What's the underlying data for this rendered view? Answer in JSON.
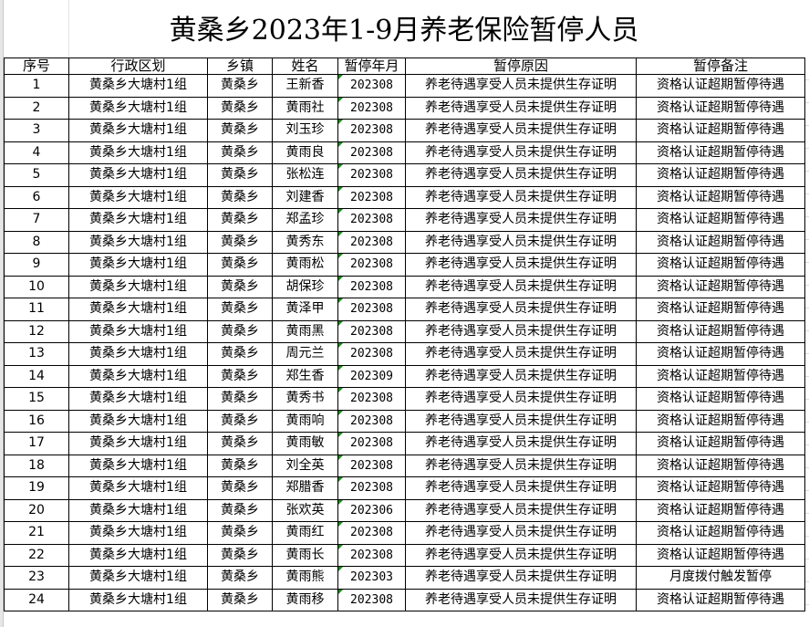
{
  "title": "黄桑乡2023年1-9月养老保险暂停人员",
  "headers": [
    "序号",
    "行政区划",
    "乡镇",
    "姓名",
    "暂停年月",
    "暂停原因",
    "暂停备注"
  ],
  "rows": [
    [
      "1",
      "黄桑乡大塘村1组",
      "黄桑乡",
      "王新香",
      "202308",
      "养老待遇享受人员未提供生存证明",
      "资格认证超期暂停待遇"
    ],
    [
      "2",
      "黄桑乡大塘村1组",
      "黄桑乡",
      "黄雨社",
      "202308",
      "养老待遇享受人员未提供生存证明",
      "资格认证超期暂停待遇"
    ],
    [
      "3",
      "黄桑乡大塘村1组",
      "黄桑乡",
      "刘玉珍",
      "202308",
      "养老待遇享受人员未提供生存证明",
      "资格认证超期暂停待遇"
    ],
    [
      "4",
      "黄桑乡大塘村1组",
      "黄桑乡",
      "黄雨良",
      "202308",
      "养老待遇享受人员未提供生存证明",
      "资格认证超期暂停待遇"
    ],
    [
      "5",
      "黄桑乡大塘村1组",
      "黄桑乡",
      "张松连",
      "202308",
      "养老待遇享受人员未提供生存证明",
      "资格认证超期暂停待遇"
    ],
    [
      "6",
      "黄桑乡大塘村1组",
      "黄桑乡",
      "刘建香",
      "202308",
      "养老待遇享受人员未提供生存证明",
      "资格认证超期暂停待遇"
    ],
    [
      "7",
      "黄桑乡大塘村1组",
      "黄桑乡",
      "郑孟珍",
      "202308",
      "养老待遇享受人员未提供生存证明",
      "资格认证超期暂停待遇"
    ],
    [
      "8",
      "黄桑乡大塘村1组",
      "黄桑乡",
      "黄秀东",
      "202308",
      "养老待遇享受人员未提供生存证明",
      "资格认证超期暂停待遇"
    ],
    [
      "9",
      "黄桑乡大塘村1组",
      "黄桑乡",
      "黄雨松",
      "202308",
      "养老待遇享受人员未提供生存证明",
      "资格认证超期暂停待遇"
    ],
    [
      "10",
      "黄桑乡大塘村1组",
      "黄桑乡",
      "胡保珍",
      "202308",
      "养老待遇享受人员未提供生存证明",
      "资格认证超期暂停待遇"
    ],
    [
      "11",
      "黄桑乡大塘村1组",
      "黄桑乡",
      "黄泽甲",
      "202308",
      "养老待遇享受人员未提供生存证明",
      "资格认证超期暂停待遇"
    ],
    [
      "12",
      "黄桑乡大塘村1组",
      "黄桑乡",
      "黄雨黑",
      "202308",
      "养老待遇享受人员未提供生存证明",
      "资格认证超期暂停待遇"
    ],
    [
      "13",
      "黄桑乡大塘村1组",
      "黄桑乡",
      "周元兰",
      "202308",
      "养老待遇享受人员未提供生存证明",
      "资格认证超期暂停待遇"
    ],
    [
      "14",
      "黄桑乡大塘村1组",
      "黄桑乡",
      "郑生香",
      "202309",
      "养老待遇享受人员未提供生存证明",
      "资格认证超期暂停待遇"
    ],
    [
      "15",
      "黄桑乡大塘村1组",
      "黄桑乡",
      "黄秀书",
      "202308",
      "养老待遇享受人员未提供生存证明",
      "资格认证超期暂停待遇"
    ],
    [
      "16",
      "黄桑乡大塘村1组",
      "黄桑乡",
      "黄雨响",
      "202308",
      "养老待遇享受人员未提供生存证明",
      "资格认证超期暂停待遇"
    ],
    [
      "17",
      "黄桑乡大塘村1组",
      "黄桑乡",
      "黄雨敏",
      "202308",
      "养老待遇享受人员未提供生存证明",
      "资格认证超期暂停待遇"
    ],
    [
      "18",
      "黄桑乡大塘村1组",
      "黄桑乡",
      "刘全英",
      "202308",
      "养老待遇享受人员未提供生存证明",
      "资格认证超期暂停待遇"
    ],
    [
      "19",
      "黄桑乡大塘村1组",
      "黄桑乡",
      "郑腊香",
      "202308",
      "养老待遇享受人员未提供生存证明",
      "资格认证超期暂停待遇"
    ],
    [
      "20",
      "黄桑乡大塘村1组",
      "黄桑乡",
      "张欢英",
      "202306",
      "养老待遇享受人员未提供生存证明",
      "资格认证超期暂停待遇"
    ],
    [
      "21",
      "黄桑乡大塘村1组",
      "黄桑乡",
      "黄雨红",
      "202308",
      "养老待遇享受人员未提供生存证明",
      "资格认证超期暂停待遇"
    ],
    [
      "22",
      "黄桑乡大塘村1组",
      "黄桑乡",
      "黄雨长",
      "202308",
      "养老待遇享受人员未提供生存证明",
      "资格认证超期暂停待遇"
    ],
    [
      "23",
      "黄桑乡大塘村1组",
      "黄桑乡",
      "黄雨熊",
      "202303",
      "养老待遇享受人员未提供生存证明",
      "月度拨付触发暂停"
    ],
    [
      "24",
      "黄桑乡大塘村1组",
      "黄桑乡",
      "黄雨移",
      "202308",
      "养老待遇享受人员未提供生存证明",
      "资格认证超期暂停待遇"
    ]
  ],
  "colors": {
    "grid": "#000000",
    "text_number_indicator": "#1a8a1a"
  }
}
